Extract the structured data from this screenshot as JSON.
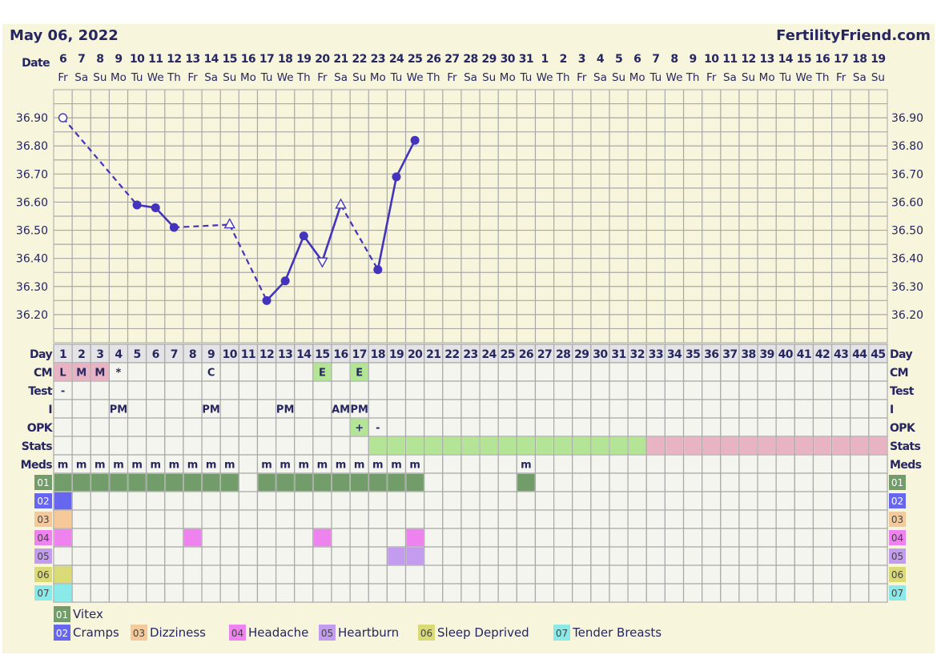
{
  "header": {
    "date_title": "May 06, 2022",
    "site": "FertilityFriend.com"
  },
  "date_label": "Date",
  "dates": [
    "6",
    "7",
    "8",
    "9",
    "10",
    "11",
    "12",
    "13",
    "14",
    "15",
    "16",
    "17",
    "18",
    "19",
    "20",
    "21",
    "22",
    "23",
    "24",
    "25",
    "26",
    "27",
    "28",
    "29",
    "30",
    "31",
    "1",
    "2",
    "3",
    "4",
    "5",
    "6",
    "7",
    "8",
    "9",
    "10",
    "11",
    "12",
    "13",
    "14",
    "15",
    "16",
    "17",
    "18",
    "19"
  ],
  "weekdays": [
    "Fr",
    "Sa",
    "Su",
    "Mo",
    "Tu",
    "We",
    "Th",
    "Fr",
    "Sa",
    "Su",
    "Mo",
    "Tu",
    "We",
    "Th",
    "Fr",
    "Sa",
    "Su",
    "Mo",
    "Tu",
    "We",
    "Th",
    "Fr",
    "Sa",
    "Su",
    "Mo",
    "Tu",
    "We",
    "Th",
    "Fr",
    "Sa",
    "Su",
    "Mo",
    "Tu",
    "We",
    "Th",
    "Fr",
    "Sa",
    "Su",
    "Mo",
    "Tu",
    "We",
    "Th",
    "Fr",
    "Sa",
    "Su"
  ],
  "colors": {
    "background": "#f7f5dc",
    "grid": "#a8a8a8",
    "cell": "#f5f5f0",
    "day_row": "#e4e4e6",
    "text": "#262660",
    "line": "#4433bb",
    "pink": "#e8b4c4",
    "green": "#b4e496"
  },
  "chart_data": {
    "type": "line",
    "ylim": [
      36.1,
      37.0
    ],
    "y_ticks": [
      "36.90",
      "36.80",
      "36.70",
      "36.60",
      "36.50",
      "36.40",
      "36.30",
      "36.20"
    ],
    "grid": true,
    "x_days": 45,
    "points": [
      {
        "day": 1,
        "temp": 36.9,
        "marker": "open-circle"
      },
      {
        "day": 5,
        "temp": 36.59,
        "marker": "dot"
      },
      {
        "day": 6,
        "temp": 36.58,
        "marker": "dot"
      },
      {
        "day": 7,
        "temp": 36.51,
        "marker": "dot"
      },
      {
        "day": 10,
        "temp": 36.52,
        "marker": "triangle-up"
      },
      {
        "day": 12,
        "temp": 36.25,
        "marker": "dot"
      },
      {
        "day": 13,
        "temp": 36.32,
        "marker": "dot"
      },
      {
        "day": 14,
        "temp": 36.48,
        "marker": "dot"
      },
      {
        "day": 15,
        "temp": 36.39,
        "marker": "triangle-down"
      },
      {
        "day": 16,
        "temp": 36.59,
        "marker": "triangle-up"
      },
      {
        "day": 18,
        "temp": 36.36,
        "marker": "dot"
      },
      {
        "day": 19,
        "temp": 36.69,
        "marker": "dot"
      },
      {
        "day": 20,
        "temp": 36.82,
        "marker": "dot"
      }
    ]
  },
  "rows": {
    "day": "Day",
    "cm": "CM",
    "test": "Test",
    "intercourse": "I",
    "opk": "OPK",
    "stats": "Stats",
    "meds": "Meds"
  },
  "cm": [
    {
      "day": 1,
      "value": "L",
      "color": "#e8b4c4"
    },
    {
      "day": 2,
      "value": "M",
      "color": "#e8b4c4"
    },
    {
      "day": 3,
      "value": "M",
      "color": "#e8b4c4"
    },
    {
      "day": 4,
      "value": "*"
    },
    {
      "day": 9,
      "value": "C"
    },
    {
      "day": 15,
      "value": "E",
      "color": "#b4e496"
    },
    {
      "day": 17,
      "value": "E",
      "color": "#b4e496"
    }
  ],
  "test": [
    {
      "day": 1,
      "value": "-"
    }
  ],
  "intercourse": [
    {
      "day": 4,
      "value": "PM"
    },
    {
      "day": 9,
      "value": "PM"
    },
    {
      "day": 13,
      "value": "PM"
    },
    {
      "day": 16,
      "value": "AM"
    },
    {
      "day": 17,
      "value": "PM"
    }
  ],
  "opk": [
    {
      "day": 17,
      "value": "+",
      "color": "#b4e496"
    },
    {
      "day": 18,
      "value": "-"
    }
  ],
  "stats": [
    {
      "from": 18,
      "to": 32,
      "color": "#b4e496"
    },
    {
      "from": 33,
      "to": 45,
      "color": "#e8b4c4"
    }
  ],
  "meds": {
    "mark": "m",
    "days": [
      1,
      2,
      3,
      4,
      5,
      6,
      7,
      8,
      9,
      10,
      12,
      13,
      14,
      15,
      16,
      17,
      18,
      19,
      20,
      26
    ]
  },
  "symptoms": [
    {
      "code": "01",
      "name": "Vitex",
      "color": "#729c6a",
      "days": [
        1,
        2,
        3,
        4,
        5,
        6,
        7,
        8,
        9,
        10,
        12,
        13,
        14,
        15,
        16,
        17,
        18,
        19,
        20,
        26
      ]
    },
    {
      "code": "02",
      "name": "Cramps",
      "color": "#6666ee",
      "days": [
        1
      ]
    },
    {
      "code": "03",
      "name": "Dizziness",
      "color": "#f5c99a",
      "days": [
        1
      ]
    },
    {
      "code": "04",
      "name": "Headache",
      "color": "#ee82ee",
      "days": [
        1,
        8,
        15,
        20
      ]
    },
    {
      "code": "05",
      "name": "Heartburn",
      "color": "#c39cf0",
      "days": [
        19,
        20
      ]
    },
    {
      "code": "06",
      "name": "Sleep Deprived",
      "color": "#dada77",
      "days": [
        1
      ]
    },
    {
      "code": "07",
      "name": "Tender Breasts",
      "color": "#8aeaea",
      "days": [
        1
      ]
    }
  ]
}
